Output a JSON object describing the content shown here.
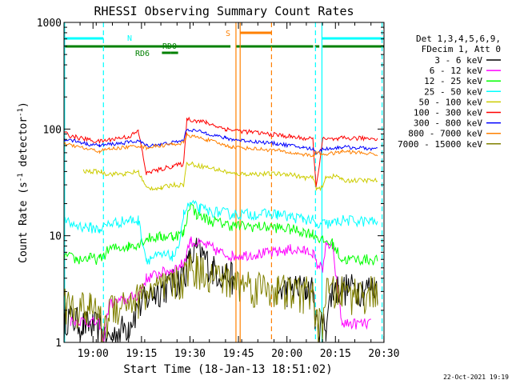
{
  "chart_data": {
    "type": "line",
    "title": "RHESSI Observing Summary Count Rates",
    "xlabel": "Start Time (18-Jan-13 18:51:02)",
    "ylabel": "Count Rate (s⁻¹ detector⁻¹)",
    "ylabel_parts": {
      "main": "Count Rate (s",
      "sup1": "-1",
      "mid": " detector",
      "sup2": "-1",
      "end": ")"
    },
    "x_unit": "minutes since 18:51:02",
    "xlim": [
      0,
      99
    ],
    "ylim": [
      1,
      1000
    ],
    "yscale": "log",
    "x_ticks": [
      {
        "label": "19:00",
        "x": 8.97
      },
      {
        "label": "19:15",
        "x": 23.97
      },
      {
        "label": "19:30",
        "x": 38.97
      },
      {
        "label": "19:45",
        "x": 53.97
      },
      {
        "label": "20:00",
        "x": 68.97
      },
      {
        "label": "20:15",
        "x": 83.97
      },
      {
        "label": "20:30",
        "x": 98.97
      }
    ],
    "y_ticks": [
      {
        "label": "1",
        "value": 1
      },
      {
        "label": "10",
        "value": 10
      },
      {
        "label": "100",
        "value": 100
      },
      {
        "label": "1000",
        "value": 1000
      }
    ],
    "legend": {
      "position": "right",
      "header": [
        "Det 1,3,4,5,6,9,",
        "FDecim 1, Att 0"
      ],
      "entries": [
        {
          "label": "3 - 6 keV",
          "color": "#000000"
        },
        {
          "label": "6 - 12 keV",
          "color": "#ff00ff"
        },
        {
          "label": "12 - 25 keV",
          "color": "#00ff00"
        },
        {
          "label": "25 - 50 keV",
          "color": "#00ffff"
        },
        {
          "label": "50 - 100 keV",
          "color": "#cccc00"
        },
        {
          "label": "100 - 300 keV",
          "color": "#ff0000"
        },
        {
          "label": "300 - 800 keV",
          "color": "#0000ff"
        },
        {
          "label": "800 - 7000 keV",
          "color": "#ff8000"
        },
        {
          "label": "7000 - 15000 keV",
          "color": "#808000"
        }
      ]
    },
    "annotations": [
      {
        "label": "N",
        "color": "#00ffff"
      },
      {
        "label": "RD0",
        "color": "#008000"
      },
      {
        "label": "RD6",
        "color": "#008000"
      },
      {
        "label": "S",
        "color": "#ff8000"
      }
    ],
    "bars": [
      {
        "name": "N",
        "color": "#00ffff",
        "segments": [
          [
            0,
            12.2
          ],
          [
            79.8,
            99
          ]
        ]
      },
      {
        "name": "RD0",
        "color": "#008000",
        "segments": [
          [
            0,
            51.5
          ],
          [
            53.3,
            77.1
          ],
          [
            77.6,
            79.0
          ],
          [
            80.0,
            99
          ]
        ]
      },
      {
        "name": "RD6",
        "color": "#008000",
        "segments": [
          [
            30.3,
            33.1
          ],
          [
            33.1,
            35.3
          ]
        ]
      },
      {
        "name": "S",
        "color": "#ff8000",
        "segments": [
          [
            54.5,
            64.2
          ]
        ]
      }
    ],
    "vlines": [
      {
        "x": 0.2,
        "color": "#00ffff",
        "style": "solid"
      },
      {
        "x": 12.2,
        "color": "#00ffff",
        "style": "dashed"
      },
      {
        "x": 79.8,
        "color": "#00ffff",
        "style": "solid"
      },
      {
        "x": 98.4,
        "color": "#00ffff",
        "style": "dashed"
      },
      {
        "x": 53.2,
        "color": "#ff8000",
        "style": "solid"
      },
      {
        "x": 54.5,
        "color": "#ff8000",
        "style": "solid"
      },
      {
        "x": 64.2,
        "color": "#ff8000",
        "style": "dashed"
      },
      {
        "x": 77.8,
        "color": "#00ffff",
        "style": "dashed"
      }
    ],
    "series": [
      {
        "name": "3 - 6 keV",
        "color": "#000000",
        "noise": 0.35,
        "points": [
          [
            0,
            1.2
          ],
          [
            0.5,
            1.8
          ],
          [
            6,
            1.5
          ],
          [
            11.5,
            1.4
          ],
          [
            12,
            1.0
          ],
          [
            20,
            1.5
          ],
          [
            23,
            2.2
          ],
          [
            25.5,
            2.6
          ],
          [
            28,
            3.0
          ],
          [
            30,
            3.3
          ],
          [
            33.5,
            3.6
          ],
          [
            35,
            3.8
          ],
          [
            37,
            4.5
          ],
          [
            39,
            6.0
          ],
          [
            41,
            7.5
          ],
          [
            43,
            6.5
          ],
          [
            46,
            5.0
          ],
          [
            49,
            4.5
          ],
          [
            52,
            4.2
          ],
          [
            52.8,
            3.0
          ],
          [
            66,
            3.0
          ],
          [
            69,
            3.2
          ],
          [
            72,
            3.3
          ],
          [
            75,
            3.2
          ],
          [
            77,
            3.2
          ],
          [
            78,
            1.5
          ],
          [
            81,
            1.5
          ],
          [
            83,
            3.2
          ],
          [
            85,
            3.3
          ],
          [
            97,
            3.3
          ]
        ]
      },
      {
        "name": "6 - 12 keV",
        "color": "#ff00ff",
        "noise": 0.12,
        "points": [
          [
            2,
            1.6
          ],
          [
            6,
            1.6
          ],
          [
            11,
            1.5
          ],
          [
            12,
            1.0
          ],
          [
            14,
            2.3
          ],
          [
            19,
            2.5
          ],
          [
            23,
            2.8
          ],
          [
            25.5,
            4.0
          ],
          [
            30,
            4.5
          ],
          [
            33.5,
            4.8
          ],
          [
            37,
            5.5
          ],
          [
            39,
            9.0
          ],
          [
            41,
            8.5
          ],
          [
            45,
            8.0
          ],
          [
            48,
            7.0
          ],
          [
            52,
            6.5
          ],
          [
            66,
            7.0
          ],
          [
            70,
            7.5
          ],
          [
            74,
            7.2
          ],
          [
            77,
            7.0
          ],
          [
            78,
            5.5
          ],
          [
            80,
            5.0
          ],
          [
            81,
            8.0
          ],
          [
            83,
            8.0
          ],
          [
            86,
            1.5
          ],
          [
            95,
            1.5
          ]
        ]
      },
      {
        "name": "12 - 25 keV",
        "color": "#00ff00",
        "noise": 0.12,
        "points": [
          [
            0,
            6.5
          ],
          [
            4,
            6.0
          ],
          [
            8,
            6.2
          ],
          [
            11,
            6.0
          ],
          [
            14,
            7.5
          ],
          [
            20,
            8.0
          ],
          [
            23,
            8.5
          ],
          [
            25.5,
            9.5
          ],
          [
            30,
            9.8
          ],
          [
            33.5,
            10.0
          ],
          [
            37,
            10.5
          ],
          [
            39,
            20.0
          ],
          [
            41,
            16.0
          ],
          [
            45,
            14.0
          ],
          [
            49,
            13.0
          ],
          [
            52,
            12.5
          ],
          [
            66,
            12.0
          ],
          [
            70,
            11.5
          ],
          [
            74,
            11.0
          ],
          [
            77,
            10.5
          ],
          [
            78,
            10.0
          ],
          [
            80,
            9.0
          ],
          [
            83,
            8.5
          ],
          [
            86,
            6.0
          ],
          [
            97,
            6.0
          ]
        ]
      },
      {
        "name": "25 - 50 keV",
        "color": "#00ffff",
        "noise": 0.12,
        "points": [
          [
            0,
            13.5
          ],
          [
            4,
            12.5
          ],
          [
            8,
            12.0
          ],
          [
            11,
            11.5
          ],
          [
            14,
            13.0
          ],
          [
            20,
            14.0
          ],
          [
            23,
            14.0
          ],
          [
            25.5,
            6.0
          ],
          [
            27,
            6.2
          ],
          [
            30,
            6.5
          ],
          [
            33.5,
            6.5
          ],
          [
            35,
            7.0
          ],
          [
            37,
            16.0
          ],
          [
            39,
            20.0
          ],
          [
            42,
            18.0
          ],
          [
            45,
            17.0
          ],
          [
            49,
            16.5
          ],
          [
            52,
            16.0
          ],
          [
            66,
            16.0
          ],
          [
            70,
            15.0
          ],
          [
            74,
            14.5
          ],
          [
            77,
            14.0
          ],
          [
            78,
            12.0
          ],
          [
            80,
            13.0
          ],
          [
            83,
            13.0
          ],
          [
            86,
            14.0
          ],
          [
            97,
            13.5
          ]
        ]
      },
      {
        "name": "50 - 100 keV",
        "color": "#cccc00",
        "noise": 0.05,
        "points": [
          [
            6,
            40.0
          ],
          [
            11.5,
            40.0
          ],
          [
            13,
            38.0
          ],
          [
            19,
            38.0
          ],
          [
            23,
            40.0
          ],
          [
            25.5,
            28.0
          ],
          [
            30,
            28.0
          ],
          [
            33.5,
            30.0
          ],
          [
            37,
            30.0
          ],
          [
            38,
            48.0
          ],
          [
            44,
            44.0
          ],
          [
            50,
            40.0
          ],
          [
            52,
            38.0
          ],
          [
            66,
            38.0
          ],
          [
            70,
            38.0
          ],
          [
            74,
            35.0
          ],
          [
            77,
            35.0
          ],
          [
            78,
            28.0
          ],
          [
            80,
            28.0
          ],
          [
            81,
            36.0
          ],
          [
            85,
            36.0
          ],
          [
            86,
            33.0
          ],
          [
            97,
            33.0
          ]
        ]
      },
      {
        "name": "100 - 300 keV",
        "color": "#ff0000",
        "noise": 0.05,
        "points": [
          [
            0,
            92.0
          ],
          [
            3,
            85.0
          ],
          [
            7,
            80.0
          ],
          [
            11,
            76.0
          ],
          [
            14,
            80.0
          ],
          [
            20,
            85.0
          ],
          [
            23,
            95.0
          ],
          [
            25.5,
            38.0
          ],
          [
            27,
            40.0
          ],
          [
            30,
            42.0
          ],
          [
            33.5,
            45.0
          ],
          [
            37,
            47.0
          ],
          [
            38,
            125.0
          ],
          [
            44,
            115.0
          ],
          [
            50,
            100.0
          ],
          [
            52,
            98.0
          ],
          [
            66,
            88.0
          ],
          [
            70,
            85.0
          ],
          [
            74,
            82.0
          ],
          [
            77,
            80.0
          ],
          [
            78,
            28.0
          ],
          [
            80,
            80.0
          ],
          [
            85,
            80.0
          ],
          [
            86,
            82.0
          ],
          [
            97,
            82.0
          ]
        ]
      },
      {
        "name": "300 - 800 keV",
        "color": "#0000ff",
        "noise": 0.04,
        "points": [
          [
            0,
            80.0
          ],
          [
            3,
            78.0
          ],
          [
            7,
            73.0
          ],
          [
            11,
            70.0
          ],
          [
            14,
            72.0
          ],
          [
            20,
            75.0
          ],
          [
            23,
            78.0
          ],
          [
            25.5,
            70.0
          ],
          [
            30,
            72.0
          ],
          [
            33.5,
            75.0
          ],
          [
            37,
            78.0
          ],
          [
            38,
            100.0
          ],
          [
            44,
            92.0
          ],
          [
            50,
            82.0
          ],
          [
            52,
            80.0
          ],
          [
            66,
            73.0
          ],
          [
            70,
            70.0
          ],
          [
            74,
            67.0
          ],
          [
            77,
            65.0
          ],
          [
            78,
            60.0
          ],
          [
            80,
            65.0
          ],
          [
            85,
            67.0
          ],
          [
            86,
            68.0
          ],
          [
            97,
            65.0
          ]
        ]
      },
      {
        "name": "800 - 7000 keV",
        "color": "#ff8000",
        "noise": 0.04,
        "points": [
          [
            0,
            72.0
          ],
          [
            3,
            70.0
          ],
          [
            7,
            65.0
          ],
          [
            11,
            62.0
          ],
          [
            14,
            65.0
          ],
          [
            20,
            68.0
          ],
          [
            23,
            70.0
          ],
          [
            25.5,
            67.0
          ],
          [
            30,
            70.0
          ],
          [
            33.5,
            72.0
          ],
          [
            37,
            74.0
          ],
          [
            38,
            88.0
          ],
          [
            44,
            80.0
          ],
          [
            50,
            70.0
          ],
          [
            52,
            68.0
          ],
          [
            66,
            63.0
          ],
          [
            70,
            60.0
          ],
          [
            74,
            58.0
          ],
          [
            77,
            56.0
          ],
          [
            78,
            60.0
          ],
          [
            80,
            58.0
          ],
          [
            85,
            60.0
          ],
          [
            86,
            62.0
          ],
          [
            97,
            58.0
          ]
        ]
      },
      {
        "name": "7000 - 15000 keV",
        "color": "#808000",
        "noise": 0.4,
        "points": [
          [
            0,
            2.3
          ],
          [
            4,
            2.2
          ],
          [
            8,
            2.1
          ],
          [
            11,
            2.0
          ],
          [
            12,
            1.0
          ],
          [
            14,
            2.2
          ],
          [
            20,
            2.5
          ],
          [
            23,
            2.6
          ],
          [
            25.5,
            3.0
          ],
          [
            30,
            3.2
          ],
          [
            33.5,
            3.5
          ],
          [
            37,
            4.0
          ],
          [
            39,
            5.5
          ],
          [
            41,
            5.0
          ],
          [
            45,
            4.5
          ],
          [
            49,
            4.0
          ],
          [
            52,
            3.8
          ],
          [
            66,
            3.2
          ],
          [
            70,
            3.0
          ],
          [
            74,
            3.0
          ],
          [
            77,
            3.0
          ],
          [
            78,
            1.5
          ],
          [
            80,
            1.5
          ],
          [
            81,
            3.0
          ],
          [
            86,
            3.0
          ],
          [
            97,
            3.0
          ]
        ]
      }
    ]
  },
  "footer": {
    "date": "22-Oct-2021 19:19"
  }
}
